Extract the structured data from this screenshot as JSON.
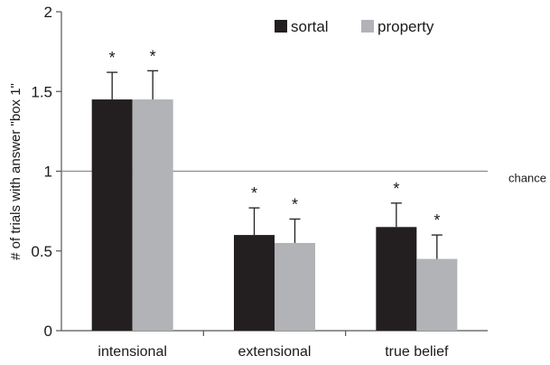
{
  "chart_data": {
    "type": "bar",
    "categories": [
      "intensional",
      "extensional",
      "true belief"
    ],
    "series": [
      {
        "name": "sortal",
        "color": "#231f20",
        "values": [
          1.45,
          0.6,
          0.65
        ],
        "errors": [
          0.17,
          0.17,
          0.15
        ],
        "significance": [
          "*",
          "*",
          "*"
        ]
      },
      {
        "name": "property",
        "color": "#b1b3b6",
        "values": [
          1.45,
          0.55,
          0.45
        ],
        "errors": [
          0.18,
          0.15,
          0.15
        ],
        "significance": [
          "*",
          "*",
          "*"
        ]
      }
    ],
    "ylabel": "# of trials with answer \"box 1\"",
    "xlabel": "",
    "ylim": [
      0,
      2
    ],
    "yticks": [
      "0",
      "0.5",
      "1",
      "1.5",
      "2"
    ],
    "reference_line": {
      "value": 1.0,
      "label": "chance",
      "color": "#8c8c8c"
    },
    "grid": false,
    "legend": "top-right"
  }
}
